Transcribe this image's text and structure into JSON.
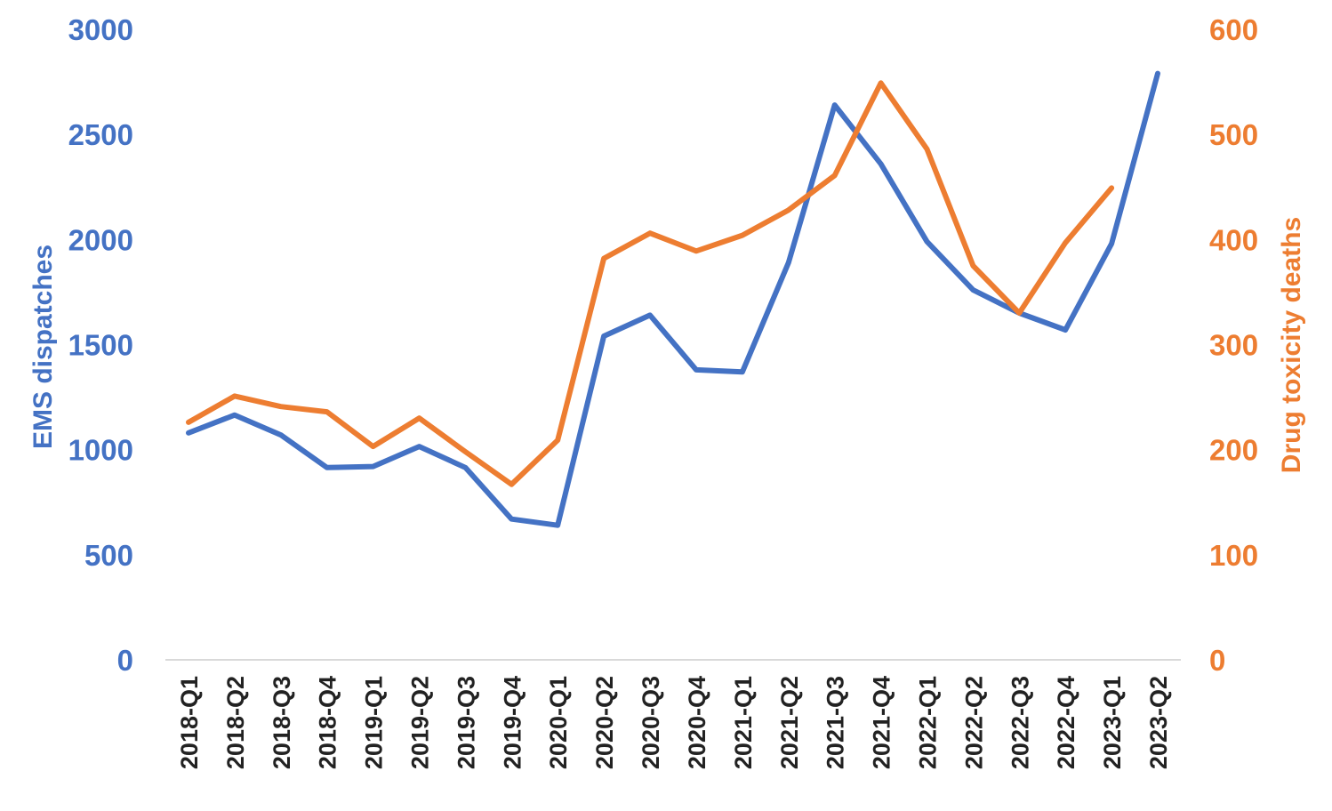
{
  "colors": {
    "ems": "#4472C4",
    "deaths": "#ED7D31",
    "axis_line": "#D9D9D9",
    "tick_x": "#222222"
  },
  "chart_data": {
    "type": "line",
    "title": "",
    "xlabel": "",
    "ylabel": "EMS dispatches",
    "y2label": "Drug toxicity deaths",
    "ylim": [
      0,
      3000
    ],
    "y2lim": [
      0,
      600
    ],
    "yticks": [
      "0",
      "500",
      "1000",
      "1500",
      "2000",
      "2500",
      "3000"
    ],
    "y2ticks": [
      "0",
      "100",
      "200",
      "300",
      "400",
      "500",
      "600"
    ],
    "grid": false,
    "legend": "none",
    "categories": [
      "2018-Q1",
      "2018-Q2",
      "2018-Q3",
      "2018-Q4",
      "2019-Q1",
      "2019-Q2",
      "2019-Q3",
      "2019-Q4",
      "2020-Q1",
      "2020-Q2",
      "2020-Q3",
      "2020-Q4",
      "2021-Q1",
      "2021-Q2",
      "2021-Q3",
      "2021-Q4",
      "2022-Q1",
      "2022-Q2",
      "2022-Q3",
      "2022-Q4",
      "2023-Q1",
      "2023-Q2"
    ],
    "series": [
      {
        "axis": "left",
        "color": "#4472C4",
        "values": [
          1080,
          1165,
          1070,
          915,
          920,
          1015,
          915,
          670,
          640,
          1540,
          1640,
          1380,
          1370,
          1890,
          2640,
          2360,
          1990,
          1760,
          1650,
          1570,
          1980,
          2790
        ]
      },
      {
        "axis": "right",
        "color": "#ED7D31",
        "values": [
          226,
          251,
          241,
          236,
          203,
          230,
          198,
          167,
          209,
          382,
          406,
          389,
          404,
          428,
          461,
          549,
          486,
          375,
          330,
          397,
          449,
          null
        ]
      }
    ]
  }
}
